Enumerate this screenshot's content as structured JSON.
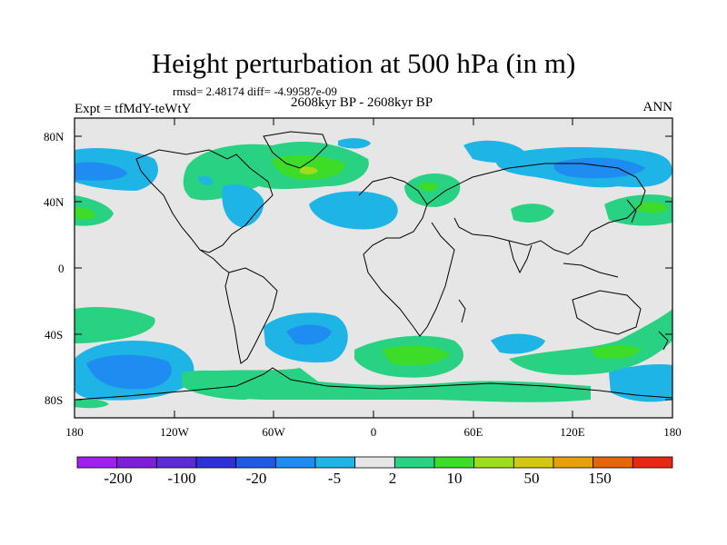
{
  "title": "Height perturbation at 500 hPa (in m)",
  "stats": "rmsd= 2.48174 diff= -4.99587e-09",
  "experiment": "Expt = tfMdY-teWtY",
  "period": "2608kyr BP - 2608kyr BP",
  "season": "ANN",
  "axes": {
    "lat_labels": [
      "80N",
      "40N",
      "0",
      "40S",
      "80S"
    ],
    "lon_labels": [
      "180",
      "120W",
      "60W",
      "0",
      "60E",
      "120E",
      "180"
    ]
  },
  "colorbar": {
    "labels": [
      "-200",
      "-100",
      "-20",
      "-5",
      "2",
      "10",
      "50",
      "150"
    ],
    "colors": [
      "#a020f0",
      "#7d1ed8",
      "#5a2bd6",
      "#3030d8",
      "#1e5ae6",
      "#1e8cf0",
      "#1eb4e6",
      "#e6e6e6",
      "#28d282",
      "#3cdc28",
      "#a0dc1e",
      "#d2c814",
      "#e6a00a",
      "#e6640a",
      "#e62814"
    ]
  },
  "colors": {
    "ocean_background": "#e6e6e6",
    "positive_light": "#28d282",
    "positive_mid": "#3cdc28",
    "positive_high": "#a0dc1e",
    "negative_light": "#1eb4e6",
    "negative_mid": "#1e8cf0"
  }
}
